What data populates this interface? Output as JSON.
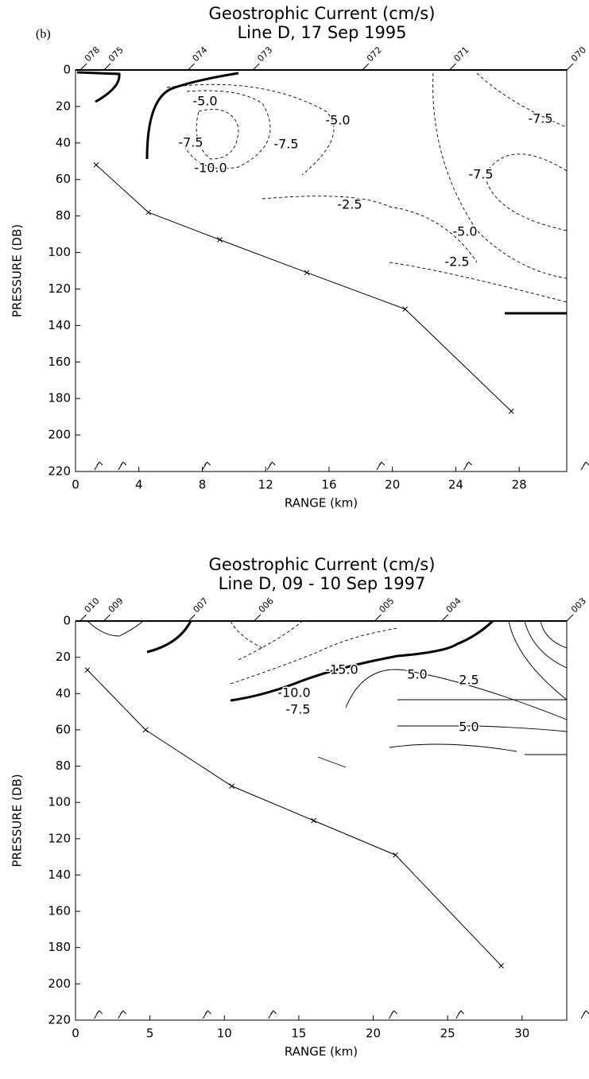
{
  "chart_data": [
    {
      "type": "line",
      "title": "Geostrophic Current (cm/s)",
      "subtitle": "Line D, 17 Sep 1995",
      "panel_label": "(b)",
      "xlabel": "RANGE (km)",
      "ylabel": "PRESSURE (DB)",
      "xlim": [
        0,
        31
      ],
      "ylim": [
        0,
        220
      ],
      "y_inverted": true,
      "xticks": [
        0,
        4,
        8,
        12,
        16,
        20,
        24,
        28
      ],
      "yticks": [
        0,
        20,
        40,
        60,
        80,
        100,
        120,
        140,
        160,
        180,
        200,
        220
      ],
      "series": [
        {
          "color": "#000000",
          "x": [
            1.3,
            4.6,
            9.1,
            14.6,
            20.8,
            27.5
          ],
          "values": [
            52,
            78,
            93,
            111,
            131,
            187
          ]
        }
      ],
      "station_labels": [
        "078",
        "075",
        "074",
        "073",
        "072",
        "071",
        "070"
      ],
      "station_x": [
        0.3,
        1.8,
        7.1,
        11.2,
        18.1,
        23.6,
        31
      ],
      "contour_labels": [
        {
          "value": -5,
          "label": "-5.0"
        },
        {
          "value": -7.5,
          "label": "-7.5"
        },
        {
          "value": -10,
          "label": "-10.0"
        },
        {
          "value": -7.5,
          "label": "-7.5"
        },
        {
          "value": -5,
          "label": "-5.0"
        },
        {
          "value": -2.5,
          "label": "-2.5"
        },
        {
          "value": -7.5,
          "label": "-7.5"
        },
        {
          "value": -7.5,
          "label": "-7.5"
        },
        {
          "value": -5,
          "label": "-5.0"
        },
        {
          "value": -2.5,
          "label": "-2.5"
        }
      ]
    },
    {
      "type": "line",
      "title": "Geostrophic Current (cm/s)",
      "subtitle": "Line D, 09 - 10 Sep 1997",
      "xlabel": "RANGE (km)",
      "ylabel": "PRESSURE (DB)",
      "xlim": [
        0,
        33
      ],
      "ylim": [
        0,
        220
      ],
      "y_inverted": true,
      "xticks": [
        0,
        5,
        10,
        15,
        20,
        25,
        30
      ],
      "yticks": [
        0,
        20,
        40,
        60,
        80,
        100,
        120,
        140,
        160,
        180,
        200,
        220
      ],
      "series": [
        {
          "color": "#000000",
          "x": [
            0.8,
            4.7,
            10.5,
            16,
            21.5,
            28.6
          ],
          "values": [
            27,
            60,
            91,
            110,
            129,
            190
          ]
        }
      ],
      "station_labels": [
        "010",
        "009",
        "007",
        "006",
        "005",
        "004",
        "003"
      ],
      "station_x": [
        0.3,
        1.9,
        7.6,
        12,
        20.1,
        24.6,
        33
      ],
      "contour_labels": [
        {
          "value": -15,
          "label": "-15.0"
        },
        {
          "value": -10,
          "label": "-10.0"
        },
        {
          "value": -7.5,
          "label": "-7.5"
        },
        {
          "value": 5,
          "label": "5.0"
        },
        {
          "value": 2.5,
          "label": "2.5"
        },
        {
          "value": 5,
          "label": "5.0"
        }
      ]
    }
  ]
}
